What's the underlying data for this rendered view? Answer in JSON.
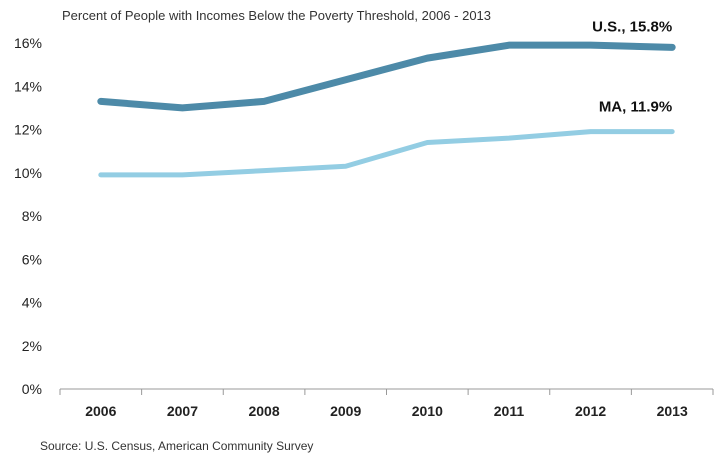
{
  "chart_data": {
    "type": "line",
    "title": "Percent of People with Incomes Below the Poverty Threshold, 2006 - 2013",
    "categories": [
      "2006",
      "2007",
      "2008",
      "2009",
      "2010",
      "2011",
      "2012",
      "2013"
    ],
    "series": [
      {
        "name": "U.S.",
        "end_label": "U.S., 15.8%",
        "color": "#4d8aa8",
        "values": [
          13.3,
          13.0,
          13.3,
          14.3,
          15.3,
          15.9,
          15.9,
          15.8
        ]
      },
      {
        "name": "MA",
        "end_label": "MA, 11.9%",
        "color": "#93cde3",
        "values": [
          9.9,
          9.9,
          10.1,
          10.3,
          11.4,
          11.6,
          11.9,
          11.9
        ]
      }
    ],
    "y_tick_labels": [
      "0%",
      "2%",
      "4%",
      "6%",
      "8%",
      "10%",
      "12%",
      "14%",
      "16%"
    ],
    "ylim": [
      0,
      16
    ],
    "xlabel": "",
    "ylabel": "",
    "grid": false,
    "legend": "none",
    "source": "Source: U.S. Census, American Community Survey"
  }
}
